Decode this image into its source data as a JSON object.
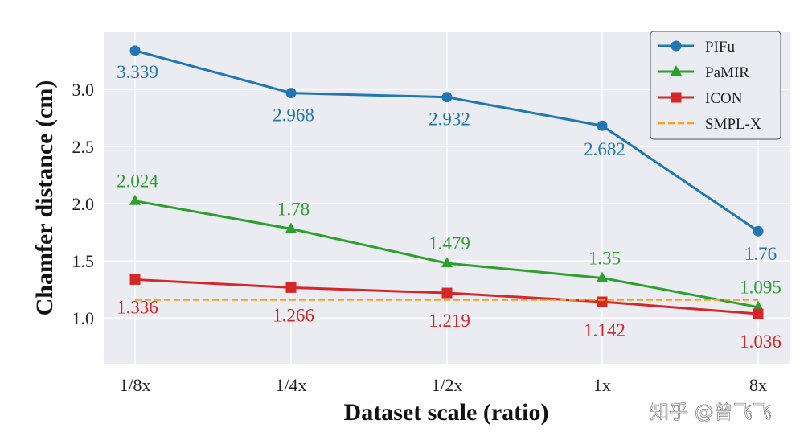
{
  "chart_data": {
    "type": "line",
    "xlabel": "Dataset scale (ratio)",
    "ylabel": "Chamfer distance (cm)",
    "categories": [
      "1/8x",
      "1/4x",
      "1/2x",
      "1x",
      "8x"
    ],
    "ylim": [
      0.6,
      3.5
    ],
    "yticks": [
      "1.0",
      "1.5",
      "2.0",
      "2.5",
      "3.0"
    ],
    "grid": true,
    "legend_position": "top-right",
    "series": [
      {
        "name": "PIFu",
        "color": "#1f77b4",
        "marker": "circle",
        "values": [
          3.339,
          2.968,
          2.932,
          2.682,
          1.76
        ],
        "labels": [
          "3.339",
          "2.968",
          "2.932",
          "2.682",
          "1.76"
        ]
      },
      {
        "name": "PaMIR",
        "color": "#2ca02c",
        "marker": "triangle",
        "values": [
          2.024,
          1.78,
          1.479,
          1.35,
          1.095
        ],
        "labels": [
          "2.024",
          "1.78",
          "1.479",
          "1.35",
          "1.095"
        ]
      },
      {
        "name": "ICON",
        "color": "#d62728",
        "marker": "square",
        "values": [
          1.336,
          1.266,
          1.219,
          1.142,
          1.036
        ],
        "labels": [
          "1.336",
          "1.266",
          "1.219",
          "1.142",
          "1.036"
        ]
      },
      {
        "name": "SMPL-X",
        "color": "#ff9f0e",
        "marker": "none",
        "dashed": true,
        "values": [
          1.16,
          1.16,
          1.16,
          1.16,
          1.16
        ]
      }
    ]
  },
  "watermark": "知乎 @曾飞飞"
}
